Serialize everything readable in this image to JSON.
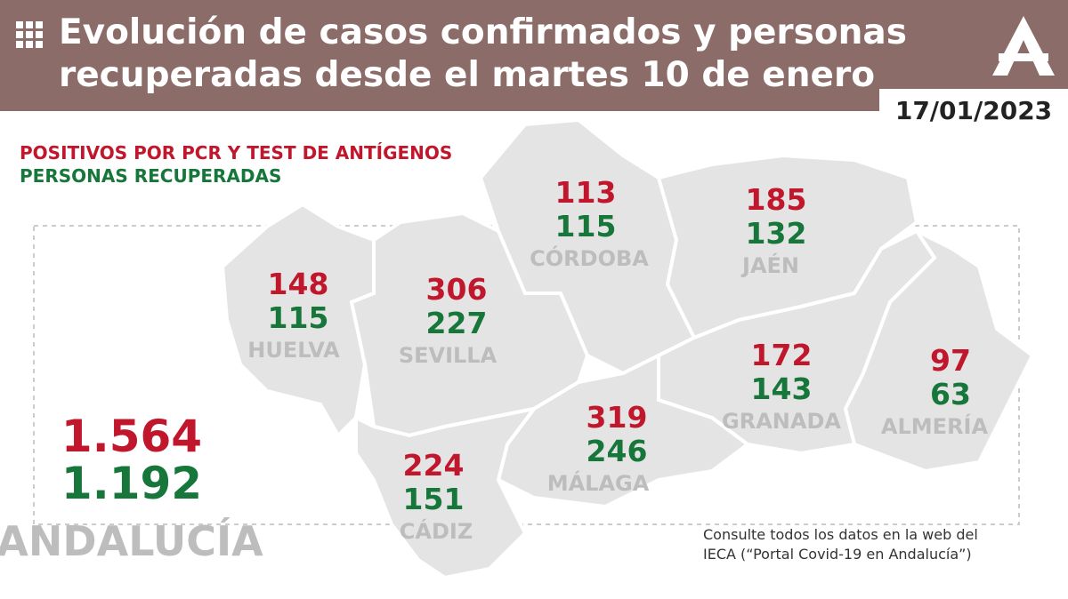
{
  "header": {
    "title_line1": "Evolución de casos confirmados y personas",
    "title_line2": "recuperadas desde el martes 10 de enero",
    "date": "17/01/2023"
  },
  "legend": {
    "positives": "POSITIVOS POR PCR Y TEST DE ANTÍGENOS",
    "recovered": "PERSONAS RECUPERADAS"
  },
  "provinces": [
    {
      "name": "HUELVA",
      "positives": 148,
      "recovered": 115
    },
    {
      "name": "SEVILLA",
      "positives": 306,
      "recovered": 227
    },
    {
      "name": "CÓRDOBA",
      "positives": 113,
      "recovered": 115
    },
    {
      "name": "JAÉN",
      "positives": 185,
      "recovered": 132
    },
    {
      "name": "GRANADA",
      "positives": 172,
      "recovered": 143
    },
    {
      "name": "ALMERÍA",
      "positives": 97,
      "recovered": 63
    },
    {
      "name": "MÁLAGA",
      "positives": 319,
      "recovered": 246
    },
    {
      "name": "CÁDIZ",
      "positives": 224,
      "recovered": 151
    }
  ],
  "total": {
    "name": "ANDALUCÍA",
    "positives": "1.564",
    "recovered": "1.192"
  },
  "footer": {
    "line1": "Consulte todos los datos en la web del",
    "line2": "IECA (“Portal Covid-19 en Andalucía”)"
  }
}
